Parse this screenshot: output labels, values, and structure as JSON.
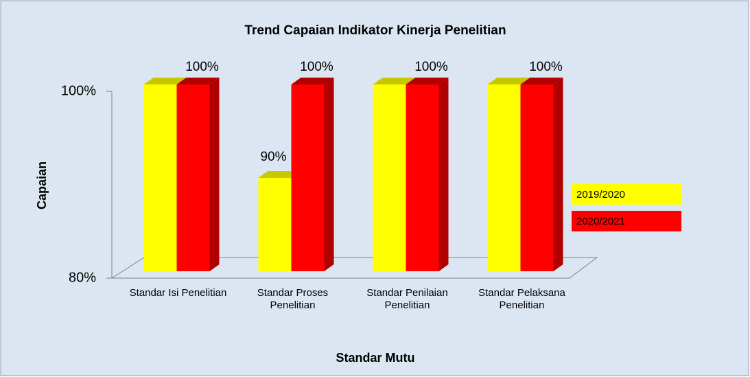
{
  "chart_data": {
    "type": "bar3d",
    "title": "Trend Capaian Indikator Kinerja  Penelitian",
    "x_label": "Standar Mutu",
    "y_label": "Capaian",
    "categories": [
      "Standar Isi Penelitian",
      "Standar Proses Penelitian",
      "Standar Penilaian Penelitian",
      "Standar Pelaksana Penelitian"
    ],
    "series": [
      {
        "name": "2019/2020",
        "color": "#ffff00",
        "side": "#c8c800",
        "values": [
          100,
          90,
          100,
          100
        ],
        "value_labels": [
          null,
          "90%",
          null,
          null
        ]
      },
      {
        "name": "2020/2021",
        "color": "#ff0000",
        "side": "#b00000",
        "values": [
          100,
          100,
          100,
          100
        ],
        "value_labels": [
          "100%",
          "100%",
          "100%",
          "100%"
        ]
      }
    ],
    "ylim": [
      80,
      100
    ],
    "yticks": [
      {
        "value": 80,
        "label": "80%"
      },
      {
        "value": 100,
        "label": "100%"
      }
    ],
    "legend": "right"
  }
}
